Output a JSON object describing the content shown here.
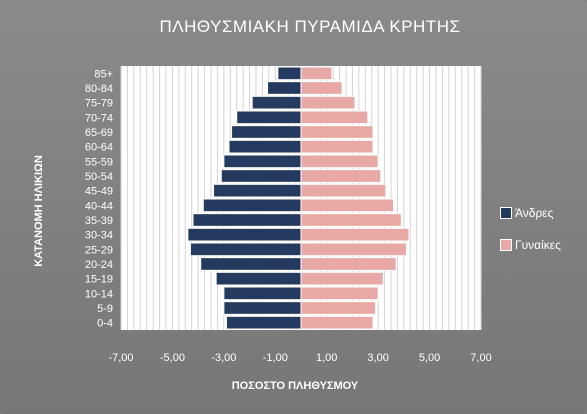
{
  "chart_data": {
    "type": "bar",
    "orientation": "horizontal-pyramid",
    "title": "ΠΛΗΘΥΣΜΙΑΚΗ ΠΥΡΑΜΙΔΑ ΚΡΗΤΗΣ",
    "xlabel": "ΠΟΣΟΣΤΟ ΠΛΗΘΥΣΜΟΥ",
    "ylabel": "ΚΑΤΑΝΟΜΗ ΗΛΙΚΙΩΝ",
    "xlim": [
      -7,
      7
    ],
    "x_ticks": [
      "-7,00",
      "-5,00",
      "-3,00",
      "-1,00",
      "1,00",
      "3,00",
      "5,00",
      "7,00"
    ],
    "grid": true,
    "legend_position": "right",
    "categories": [
      "0-4",
      "5-9",
      "10-14",
      "15-19",
      "20-24",
      "25-29",
      "30-34",
      "35-39",
      "40-44",
      "45-49",
      "50-54",
      "55-59",
      "60-64",
      "65-69",
      "70-74",
      "75-79",
      "80-84",
      "85+"
    ],
    "series": [
      {
        "name": "Άνδρες",
        "color": "#243a5e",
        "values": [
          -2.9,
          -3.0,
          -3.0,
          -3.3,
          -3.9,
          -4.3,
          -4.4,
          -4.2,
          -3.8,
          -3.4,
          -3.1,
          -3.0,
          -2.8,
          -2.7,
          -2.5,
          -1.9,
          -1.3,
          -0.9
        ]
      },
      {
        "name": "Γυναίκες",
        "color": "#e8a8a6",
        "values": [
          2.8,
          2.9,
          3.0,
          3.2,
          3.7,
          4.1,
          4.2,
          3.9,
          3.6,
          3.3,
          3.1,
          3.0,
          2.8,
          2.8,
          2.6,
          2.1,
          1.6,
          1.2
        ]
      }
    ]
  }
}
